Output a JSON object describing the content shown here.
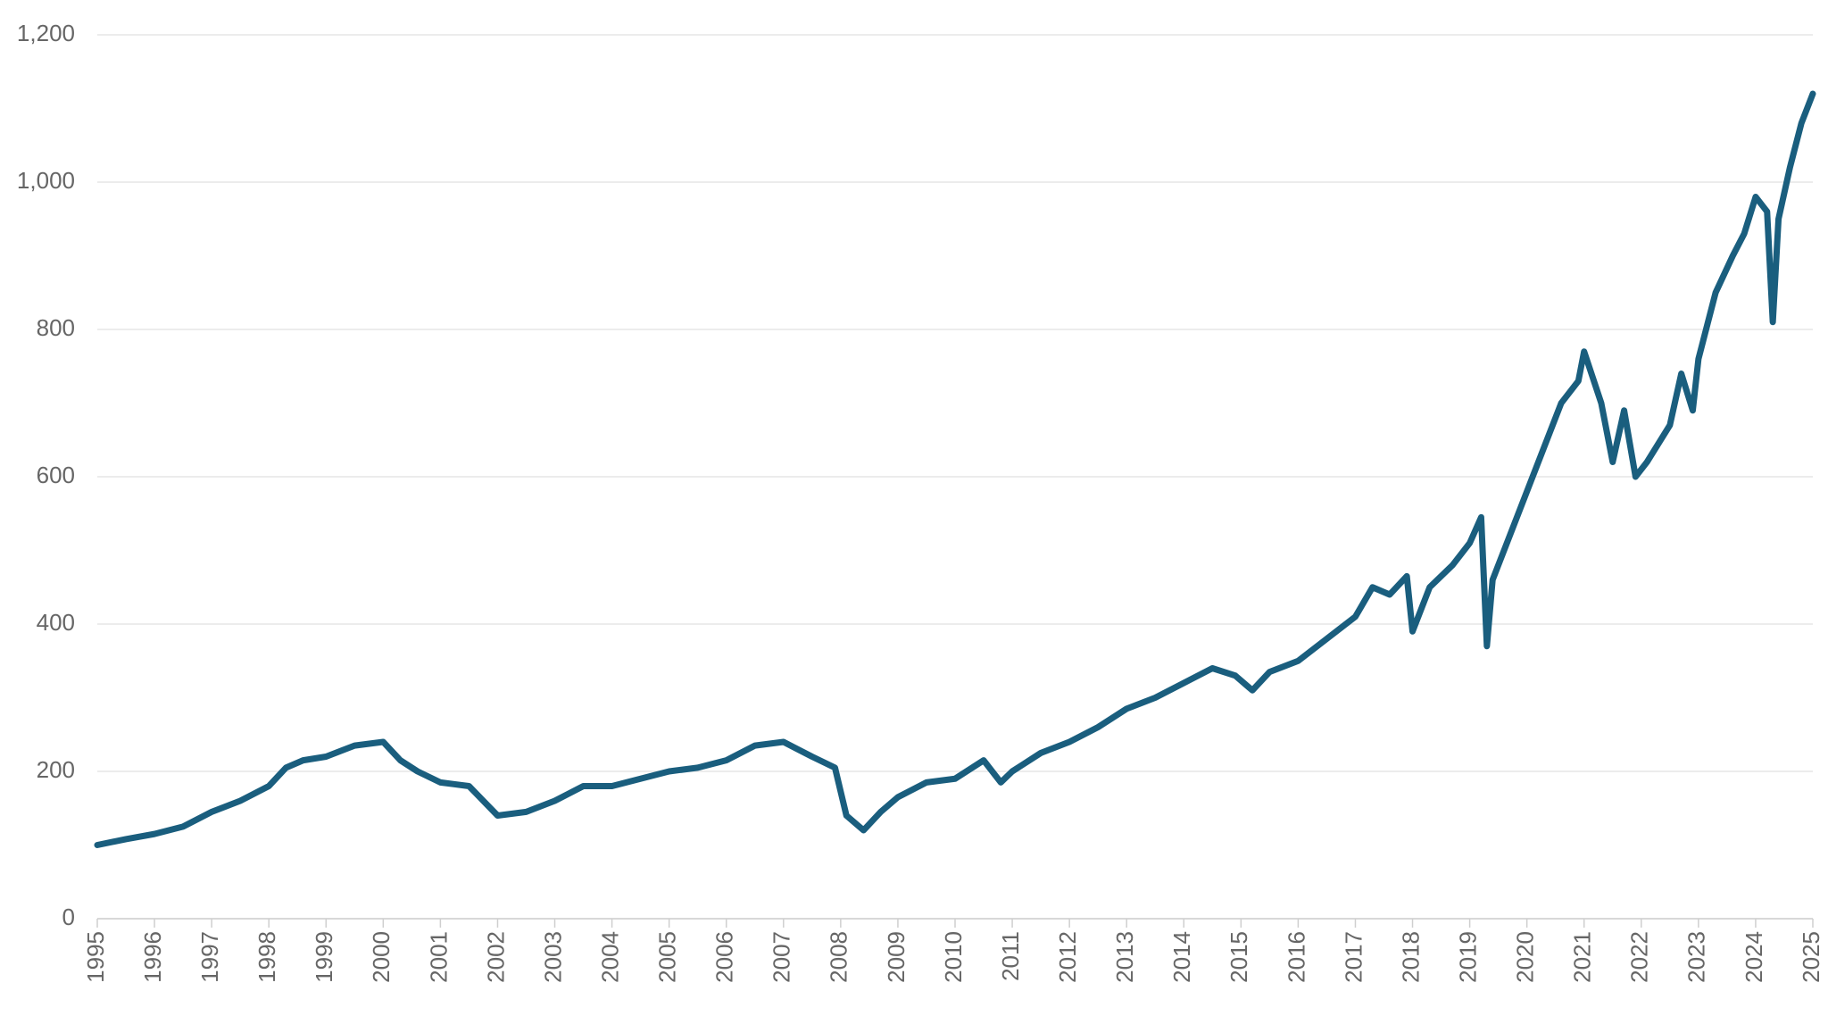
{
  "chart_data": {
    "type": "line",
    "x": [
      1995.0,
      1995.5,
      1996.0,
      1996.5,
      1997.0,
      1997.5,
      1998.0,
      1998.3,
      1998.6,
      1999.0,
      1999.5,
      2000.0,
      2000.3,
      2000.6,
      2001.0,
      2001.5,
      2002.0,
      2002.5,
      2003.0,
      2003.5,
      2004.0,
      2004.5,
      2005.0,
      2005.5,
      2006.0,
      2006.5,
      2007.0,
      2007.5,
      2007.9,
      2008.1,
      2008.4,
      2008.7,
      2009.0,
      2009.5,
      2010.0,
      2010.5,
      2010.8,
      2011.0,
      2011.5,
      2012.0,
      2012.5,
      2013.0,
      2013.5,
      2014.0,
      2014.5,
      2014.9,
      2015.2,
      2015.5,
      2016.0,
      2016.5,
      2017.0,
      2017.3,
      2017.6,
      2017.9,
      2018.0,
      2018.3,
      2018.7,
      2019.0,
      2019.2,
      2019.3,
      2019.4,
      2019.6,
      2020.0,
      2020.3,
      2020.6,
      2020.9,
      2021.0,
      2021.3,
      2021.5,
      2021.7,
      2021.9,
      2022.1,
      2022.5,
      2022.7,
      2022.9,
      2023.0,
      2023.3,
      2023.6,
      2023.8,
      2024.0,
      2024.2,
      2024.3,
      2024.4,
      2024.6,
      2024.8,
      2025.0
    ],
    "series": [
      {
        "color": "#1a5e7e",
        "values": [
          100,
          108,
          115,
          125,
          145,
          160,
          180,
          205,
          215,
          220,
          235,
          240,
          215,
          200,
          185,
          180,
          140,
          145,
          160,
          180,
          180,
          190,
          200,
          205,
          215,
          235,
          240,
          220,
          205,
          140,
          120,
          145,
          165,
          185,
          190,
          215,
          185,
          200,
          225,
          240,
          260,
          285,
          300,
          320,
          340,
          330,
          310,
          335,
          350,
          380,
          410,
          450,
          440,
          465,
          390,
          450,
          480,
          510,
          545,
          370,
          460,
          500,
          580,
          640,
          700,
          730,
          770,
          700,
          620,
          690,
          600,
          620,
          670,
          740,
          690,
          760,
          850,
          900,
          930,
          980,
          960,
          810,
          950,
          1020,
          1080,
          1120
        ]
      }
    ],
    "xlim": [
      1995,
      2025
    ],
    "xticks": [
      1995,
      1996,
      1997,
      1998,
      1999,
      2000,
      2001,
      2002,
      2003,
      2004,
      2005,
      2006,
      2007,
      2008,
      2009,
      2010,
      2011,
      2012,
      2013,
      2014,
      2015,
      2016,
      2017,
      2018,
      2019,
      2020,
      2021,
      2022,
      2023,
      2024,
      2025
    ],
    "ylim": [
      0,
      1200
    ],
    "yticks": [
      0,
      200,
      400,
      600,
      800,
      {
        "value": 1000,
        "label": "1,000"
      },
      {
        "value": 1200,
        "label": "1,200"
      }
    ],
    "grid": true
  }
}
